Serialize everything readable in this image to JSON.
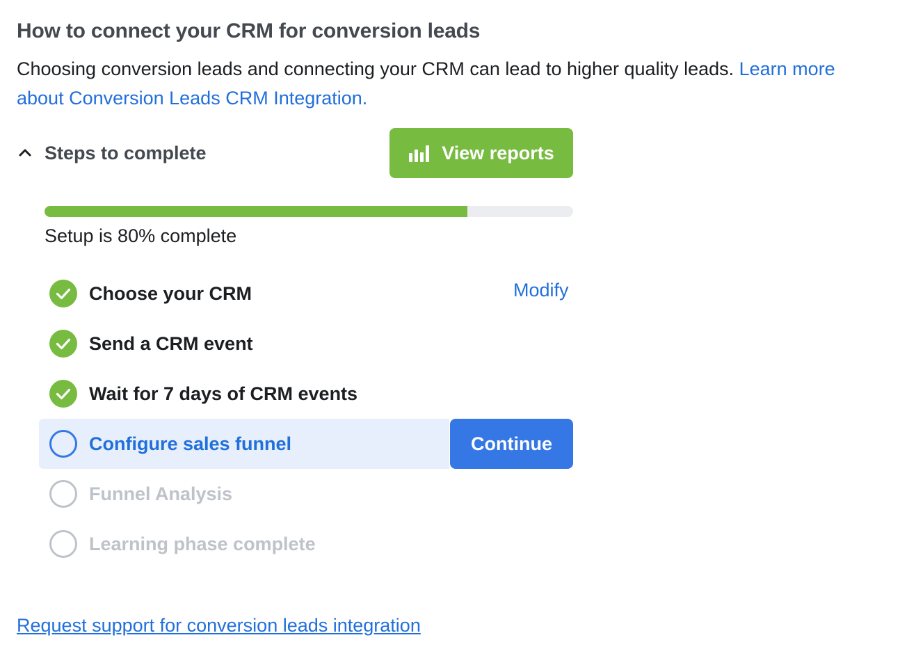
{
  "header": {
    "title": "How to connect your CRM for conversion leads",
    "intro_text": "Choosing conversion leads and connecting your CRM can lead to higher quality leads. ",
    "learn_more_link": "Learn more about Conversion Leads CRM Integration."
  },
  "steps_section": {
    "toggle_label": "Steps to complete",
    "toggle_icon": "chevron-up-icon",
    "view_reports_label": "View reports",
    "view_reports_icon": "bar-chart-icon",
    "accent_color": "#77bb41"
  },
  "progress": {
    "percent": 80,
    "text": "Setup is 80% complete"
  },
  "steps": [
    {
      "label": "Choose your CRM",
      "status": "complete",
      "action_label": "Modify"
    },
    {
      "label": "Send a CRM event",
      "status": "complete"
    },
    {
      "label": "Wait for 7 days of CRM events",
      "status": "complete"
    },
    {
      "label": "Configure sales funnel",
      "status": "active",
      "action_label": "Continue"
    },
    {
      "label": "Funnel Analysis",
      "status": "pending"
    },
    {
      "label": "Learning phase complete",
      "status": "pending"
    }
  ],
  "footer": {
    "support_link": "Request support for conversion leads integration"
  },
  "colors": {
    "link": "#216fdb",
    "primary_button": "#3578e5",
    "success": "#77bb41",
    "active_row_bg": "#e7effc",
    "pending": "#bec3c9"
  }
}
